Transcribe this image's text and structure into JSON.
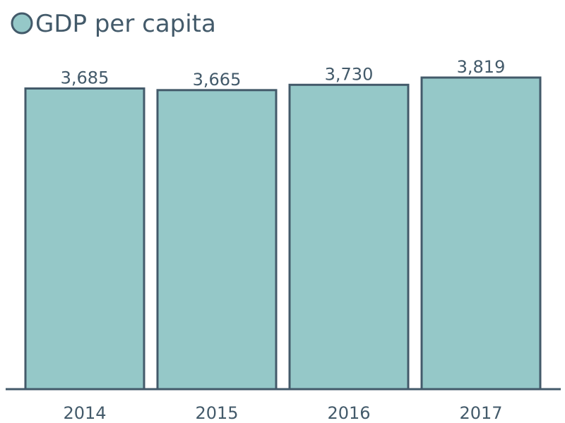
{
  "chart_data": {
    "type": "bar",
    "categories": [
      "2014",
      "2015",
      "2016",
      "2017"
    ],
    "series": [
      {
        "name": "GDP per capita",
        "values": [
          3685,
          3665,
          3730,
          3819
        ],
        "data_labels": [
          "3,685",
          "3,665",
          "3,730",
          "3,819"
        ]
      }
    ],
    "ylim": [
      0,
      3819
    ],
    "grid": false,
    "legend_position": "top-left",
    "colors": {
      "bar_fill": "#95c8c8",
      "bar_stroke": "#435a6a",
      "text": "#435a6a",
      "axis": "#435a6a"
    }
  }
}
